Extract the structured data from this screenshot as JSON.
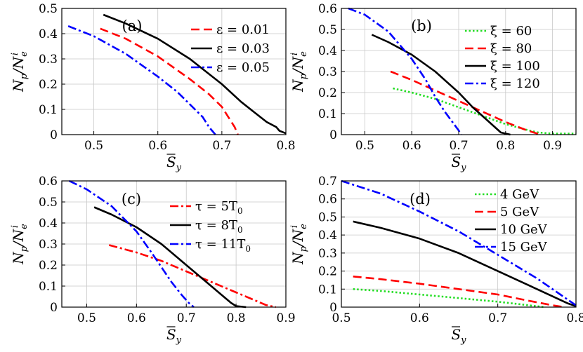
{
  "chart_data": [
    {
      "panel": "(a)",
      "type": "line",
      "xlabel": "S̅y",
      "ylabel": "Np/Nei",
      "xlim": [
        0.45,
        0.8
      ],
      "ylim": [
        0,
        0.5
      ],
      "xticks": [
        0.5,
        0.6,
        0.7,
        0.8
      ],
      "xtick_labels": [
        "0.5",
        "0.6",
        "0.7",
        "0.8"
      ],
      "yticks": [
        0,
        0.1,
        0.2,
        0.3,
        0.4,
        0.5
      ],
      "ytick_labels": [
        "0",
        "0.1",
        "0.2",
        "0.3",
        "0.4",
        "0.5"
      ],
      "legend_position": "top-right",
      "series": [
        {
          "name": "ε = 0.01",
          "color": "#ff0000",
          "dash": "dash",
          "x": [
            0.51,
            0.55,
            0.6,
            0.65,
            0.68,
            0.7,
            0.71,
            0.72,
            0.725
          ],
          "y": [
            0.42,
            0.38,
            0.31,
            0.22,
            0.16,
            0.11,
            0.07,
            0.03,
            0
          ]
        },
        {
          "name": "ε = 0.03",
          "color": "#000000",
          "dash": "solid",
          "x": [
            0.515,
            0.55,
            0.6,
            0.65,
            0.7,
            0.73,
            0.75,
            0.77,
            0.785,
            0.79,
            0.8
          ],
          "y": [
            0.475,
            0.44,
            0.38,
            0.3,
            0.2,
            0.13,
            0.09,
            0.05,
            0.03,
            0.015,
            0.005
          ]
        },
        {
          "name": "ε = 0.05",
          "color": "#0000ff",
          "dash": "dashdot",
          "x": [
            0.46,
            0.5,
            0.55,
            0.6,
            0.63,
            0.65,
            0.67,
            0.68,
            0.69
          ],
          "y": [
            0.43,
            0.39,
            0.32,
            0.23,
            0.17,
            0.12,
            0.07,
            0.03,
            0
          ]
        }
      ]
    },
    {
      "panel": "(b)",
      "type": "line",
      "xlabel": "S̅y",
      "ylabel": "Np/Nei",
      "xlim": [
        0.45,
        0.95
      ],
      "ylim": [
        0,
        0.6
      ],
      "xticks": [
        0.5,
        0.6,
        0.7,
        0.8,
        0.9
      ],
      "xtick_labels": [
        "0.5",
        "0.6",
        "0.7",
        "0.8",
        "0.9"
      ],
      "yticks": [
        0,
        0.1,
        0.2,
        0.3,
        0.4,
        0.5,
        0.6
      ],
      "ytick_labels": [
        "0",
        "0.1",
        "0.2",
        "0.3",
        "0.4",
        "0.5",
        "0.6"
      ],
      "legend_position": "top-right",
      "series": [
        {
          "name": "ξ = 60",
          "color": "#22dd22",
          "dash": "dot",
          "x": [
            0.56,
            0.6,
            0.65,
            0.7,
            0.75,
            0.8,
            0.85,
            0.87,
            0.9,
            0.95
          ],
          "y": [
            0.22,
            0.2,
            0.17,
            0.13,
            0.09,
            0.05,
            0.02,
            0.01,
            0.005,
            0.005
          ]
        },
        {
          "name": "ξ = 80",
          "color": "#ff0000",
          "dash": "dash",
          "x": [
            0.555,
            0.6,
            0.65,
            0.7,
            0.75,
            0.8,
            0.84,
            0.86,
            0.875
          ],
          "y": [
            0.3,
            0.26,
            0.21,
            0.16,
            0.11,
            0.06,
            0.025,
            0.01,
            0
          ]
        },
        {
          "name": "ξ = 100",
          "color": "#000000",
          "dash": "solid",
          "x": [
            0.515,
            0.55,
            0.6,
            0.65,
            0.7,
            0.73,
            0.76,
            0.78,
            0.79,
            0.8,
            0.81
          ],
          "y": [
            0.475,
            0.44,
            0.38,
            0.3,
            0.2,
            0.13,
            0.07,
            0.03,
            0.01,
            0.005,
            0
          ]
        },
        {
          "name": "ξ = 120",
          "color": "#0000ff",
          "dash": "dashdot",
          "x": [
            0.465,
            0.5,
            0.55,
            0.6,
            0.63,
            0.65,
            0.67,
            0.69,
            0.7,
            0.705
          ],
          "y": [
            0.6,
            0.57,
            0.49,
            0.36,
            0.26,
            0.18,
            0.11,
            0.05,
            0.02,
            0
          ]
        }
      ]
    },
    {
      "panel": "(c)",
      "type": "line",
      "xlabel": "S̅y",
      "ylabel": "Np/Nei",
      "xlim": [
        0.45,
        0.9
      ],
      "ylim": [
        0,
        0.6
      ],
      "xticks": [
        0.5,
        0.6,
        0.7,
        0.8,
        0.9
      ],
      "xtick_labels": [
        "0.5",
        "0.6",
        "0.7",
        "0.8",
        "0.9"
      ],
      "yticks": [
        0,
        0.1,
        0.2,
        0.3,
        0.4,
        0.5,
        0.6
      ],
      "ytick_labels": [
        "0",
        "0.1",
        "0.2",
        "0.3",
        "0.4",
        "0.5",
        "0.6"
      ],
      "legend_position": "top-right",
      "series": [
        {
          "name": "τ = 5T0",
          "color": "#ff0000",
          "dash": "dashdot",
          "x": [
            0.545,
            0.6,
            0.65,
            0.7,
            0.75,
            0.8,
            0.84,
            0.86,
            0.88
          ],
          "y": [
            0.295,
            0.26,
            0.22,
            0.17,
            0.12,
            0.07,
            0.03,
            0.01,
            0
          ]
        },
        {
          "name": "τ = 8T0",
          "color": "#000000",
          "dash": "solid",
          "x": [
            0.515,
            0.55,
            0.6,
            0.65,
            0.7,
            0.74,
            0.77,
            0.79,
            0.8,
            0.82
          ],
          "y": [
            0.475,
            0.44,
            0.38,
            0.3,
            0.2,
            0.12,
            0.06,
            0.02,
            0.005,
            0
          ]
        },
        {
          "name": "τ = 11T0",
          "color": "#0000ff",
          "dash": "dashdot",
          "x": [
            0.465,
            0.5,
            0.55,
            0.6,
            0.63,
            0.65,
            0.67,
            0.69,
            0.705,
            0.715
          ],
          "y": [
            0.6,
            0.56,
            0.48,
            0.36,
            0.26,
            0.19,
            0.12,
            0.06,
            0.02,
            0
          ]
        }
      ]
    },
    {
      "panel": "(d)",
      "type": "line",
      "xlabel": "S̅y",
      "ylabel": "Np/Nei",
      "xlim": [
        0.5,
        0.8
      ],
      "ylim": [
        0,
        0.7
      ],
      "xticks": [
        0.5,
        0.6,
        0.7,
        0.8
      ],
      "xtick_labels": [
        "0.5",
        "0.6",
        "0.7",
        "0.8"
      ],
      "yticks": [
        0,
        0.1,
        0.2,
        0.3,
        0.4,
        0.5,
        0.6,
        0.7
      ],
      "ytick_labels": [
        "0",
        "0.1",
        "0.2",
        "0.3",
        "0.4",
        "0.5",
        "0.6",
        "0.7"
      ],
      "legend_position": "top-right",
      "series": [
        {
          "name": "4 GeV",
          "color": "#22dd22",
          "dash": "dot",
          "x": [
            0.515,
            0.55,
            0.6,
            0.65,
            0.7,
            0.73,
            0.75,
            0.76
          ],
          "y": [
            0.1,
            0.09,
            0.07,
            0.05,
            0.03,
            0.015,
            0.005,
            0
          ]
        },
        {
          "name": "5 GeV",
          "color": "#ff0000",
          "dash": "dash",
          "x": [
            0.515,
            0.55,
            0.6,
            0.65,
            0.7,
            0.74,
            0.77,
            0.785
          ],
          "y": [
            0.17,
            0.155,
            0.13,
            0.1,
            0.07,
            0.035,
            0.01,
            0
          ]
        },
        {
          "name": "10 GeV",
          "color": "#000000",
          "dash": "solid",
          "x": [
            0.515,
            0.55,
            0.6,
            0.65,
            0.7,
            0.74,
            0.77,
            0.79,
            0.8
          ],
          "y": [
            0.475,
            0.44,
            0.38,
            0.3,
            0.2,
            0.12,
            0.06,
            0.02,
            0.005
          ]
        },
        {
          "name": "15 GeV",
          "color": "#0000ff",
          "dash": "dashdot",
          "x": [
            0.5,
            0.55,
            0.6,
            0.65,
            0.7,
            0.75,
            0.78,
            0.8
          ],
          "y": [
            0.7,
            0.63,
            0.53,
            0.42,
            0.29,
            0.16,
            0.07,
            0.01
          ]
        }
      ]
    }
  ]
}
